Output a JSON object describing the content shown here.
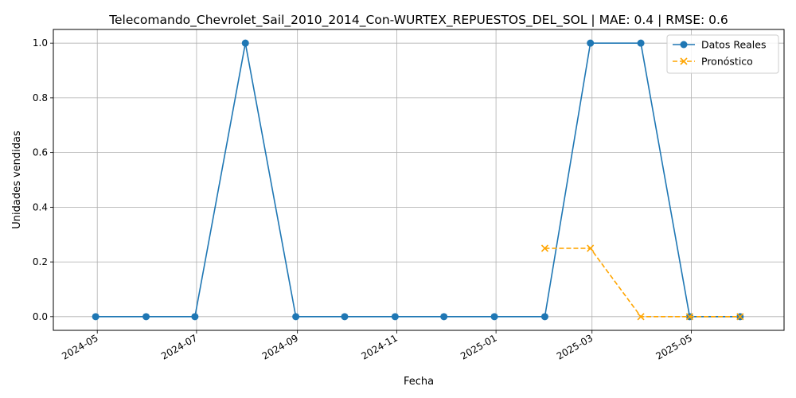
{
  "chart_data": {
    "type": "line",
    "title": "Telecomando_Chevrolet_Sail_2010_2014_Con-WURTEX_REPUESTOS_DEL_SOL | MAE: 0.4 | RMSE: 0.6",
    "xlabel": "Fecha",
    "ylabel": "Unidades vendidas",
    "x_ticks": [
      "2024-05",
      "2024-07",
      "2024-09",
      "2024-11",
      "2025-01",
      "2025-03",
      "2025-05"
    ],
    "y_ticks": [
      "0.0",
      "0.2",
      "0.4",
      "0.6",
      "0.8",
      "1.0"
    ],
    "ylim": [
      -0.05,
      1.05
    ],
    "xlim": [
      "2024-04-04",
      "2025-06-27"
    ],
    "grid": true,
    "legend_position": "top-right",
    "series": [
      {
        "name": "Datos Reales",
        "color": "#1f77b4",
        "marker": "circle",
        "linestyle": "solid",
        "x": [
          "2024-04-30",
          "2024-05-31",
          "2024-06-30",
          "2024-07-31",
          "2024-08-31",
          "2024-09-30",
          "2024-10-31",
          "2024-11-30",
          "2024-12-31",
          "2025-01-31",
          "2025-02-28",
          "2025-03-31",
          "2025-04-30",
          "2025-05-31"
        ],
        "values": [
          0,
          0,
          0,
          1,
          0,
          0,
          0,
          0,
          0,
          0,
          1,
          1,
          0,
          0
        ]
      },
      {
        "name": "Pronóstico",
        "color": "#ffa500",
        "marker": "x",
        "linestyle": "dashed",
        "x": [
          "2025-01-31",
          "2025-02-28",
          "2025-03-31",
          "2025-04-30",
          "2025-05-31"
        ],
        "values": [
          0.25,
          0.25,
          0,
          0,
          0
        ]
      }
    ]
  }
}
